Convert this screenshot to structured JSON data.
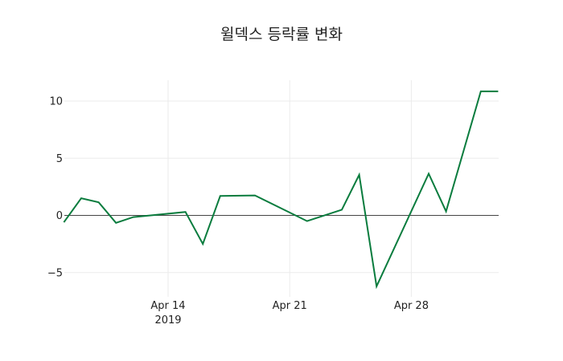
{
  "chart_data": {
    "type": "line",
    "title": "윌덱스 등락률 변화",
    "xlabel": "",
    "ylabel": "",
    "x": [
      "2019-04-08",
      "2019-04-09",
      "2019-04-10",
      "2019-04-11",
      "2019-04-12",
      "2019-04-15",
      "2019-04-16",
      "2019-04-17",
      "2019-04-19",
      "2019-04-22",
      "2019-04-24",
      "2019-04-25",
      "2019-04-26",
      "2019-04-29",
      "2019-04-30",
      "2019-05-02",
      "2019-05-03"
    ],
    "series": [
      {
        "name": "등락률",
        "color": "#0a7c3e",
        "values": [
          -0.6,
          1.5,
          1.15,
          -0.65,
          -0.15,
          0.3,
          -2.5,
          1.7,
          1.75,
          -0.5,
          0.5,
          3.55,
          -6.2,
          3.65,
          0.35,
          10.85,
          10.85
        ]
      }
    ],
    "x_ticks": [
      {
        "label": "Apr 14",
        "sublabel": "2019",
        "date": "2019-04-14"
      },
      {
        "label": "Apr 21",
        "sublabel": "",
        "date": "2019-04-21"
      },
      {
        "label": "Apr 28",
        "sublabel": "",
        "date": "2019-04-28"
      }
    ],
    "y_ticks": [
      {
        "label": "10",
        "value": 10
      },
      {
        "label": "5",
        "value": 5
      },
      {
        "label": "0",
        "value": 0
      },
      {
        "label": "−5",
        "value": -5
      }
    ],
    "ylim": [
      -7,
      12
    ],
    "grid": true,
    "legend": "none"
  }
}
